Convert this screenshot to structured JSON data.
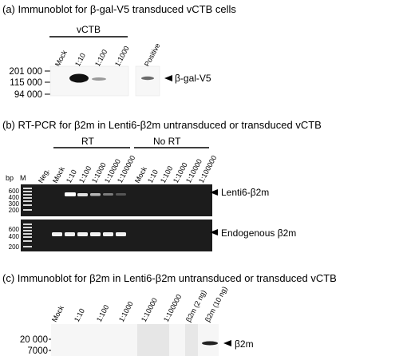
{
  "panel_a": {
    "title": "(a)  Immunoblot for β-gal-V5 transduced vCTB cells",
    "group_label": "vCTB",
    "lanes": [
      "Mock",
      "1:10",
      "1:100",
      "1:1000"
    ],
    "positive_lane": "Positive",
    "markers": [
      "201 000",
      "115 000",
      "94 000"
    ],
    "band_label": "β-gal-V5"
  },
  "panel_b": {
    "title": "(b)  RT-PCR for β2m in Lenti6-β2m untransduced or transduced vCTB",
    "groups": [
      "RT",
      "No RT"
    ],
    "bp_label": "bp",
    "ladder_label": "M",
    "lanes": [
      "Neg.",
      "Mock",
      "1:10",
      "1:100",
      "1:1000",
      "1:10000",
      "1:100000",
      "Mock",
      "1:10",
      "1:100",
      "1:1000",
      "1:10000",
      "1:100000"
    ],
    "gel1_sizes": [
      "600",
      "400",
      "300",
      "200"
    ],
    "gel2_sizes": [
      "600",
      "400",
      "200"
    ],
    "gel1_band_label": "Lenti6-β2m",
    "gel2_band_label": "Endogenous β2m"
  },
  "panel_c": {
    "title": "(c)  Immunoblot for β2m in Lenti6-β2m untransduced or transduced vCTB",
    "lanes": [
      "Mock",
      "1:10",
      "1:100",
      "1:1000",
      "1:10000",
      "1:100000",
      "β2m (2 ng)",
      "β2m (10 ng)"
    ],
    "markers": [
      "20 000",
      "7000"
    ],
    "band_label": "β2m"
  }
}
